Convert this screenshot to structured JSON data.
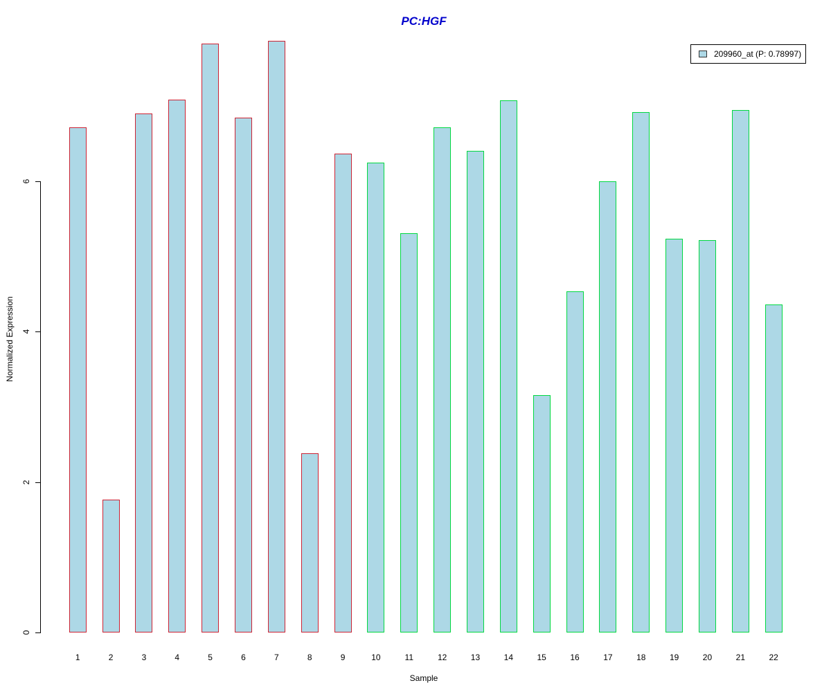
{
  "title": {
    "text": "PC:HGF",
    "color": "#0000CC"
  },
  "legend": {
    "label": "209960_at (P: 0.78997)",
    "swatch_color": "#ADD8E6",
    "swatch_border": "#333333",
    "box_border": "#000000"
  },
  "axes": {
    "y_label": "Normalized Expression",
    "x_label": "Sample",
    "y_tick_labels": [
      "0",
      "2",
      "4",
      "6"
    ]
  },
  "colors": {
    "bar_fill": "#ADD8E6",
    "group1_border": "#CC2233",
    "group2_border": "#00D840",
    "axis": "#000000"
  },
  "chart_data": {
    "type": "bar",
    "title": "PC:HGF",
    "xlabel": "Sample",
    "ylabel": "Normalized Expression",
    "categories": [
      "1",
      "2",
      "3",
      "4",
      "5",
      "6",
      "7",
      "8",
      "9",
      "10",
      "11",
      "12",
      "13",
      "14",
      "15",
      "16",
      "17",
      "18",
      "19",
      "20",
      "21",
      "22"
    ],
    "values": [
      6.72,
      1.77,
      6.9,
      7.08,
      7.83,
      6.84,
      7.87,
      2.38,
      6.37,
      6.25,
      5.31,
      6.72,
      6.4,
      7.07,
      3.16,
      4.54,
      6.0,
      6.92,
      5.23,
      5.22,
      6.95,
      4.36
    ],
    "series_name": "209960_at",
    "p_value": 0.78997,
    "legend_entry": "209960_at (P: 0.78997)",
    "legend_position": "top-right",
    "y_ticks": [
      0,
      2,
      4,
      6
    ],
    "ylim": [
      0,
      8.1
    ],
    "grid": false,
    "bar_fill": "#ADD8E6",
    "bar_border_groups": [
      {
        "from": 1,
        "to": 9,
        "color": "#CC2233"
      },
      {
        "from": 10,
        "to": 22,
        "color": "#00D840"
      }
    ]
  }
}
